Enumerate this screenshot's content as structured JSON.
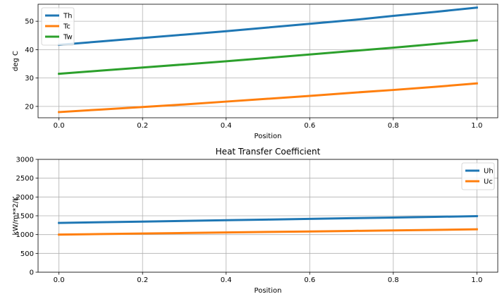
{
  "chart_data": [
    {
      "type": "line",
      "title": "",
      "xlabel": "Position",
      "ylabel": "deg C",
      "xlim": [
        -0.05,
        1.05
      ],
      "ylim": [
        16,
        56
      ],
      "xticks": [
        0.0,
        0.2,
        0.4,
        0.6,
        0.8,
        1.0
      ],
      "xtick_labels": [
        "0.0",
        "0.2",
        "0.4",
        "0.6",
        "0.8",
        "1.0"
      ],
      "yticks": [
        20,
        30,
        40,
        50
      ],
      "ytick_labels": [
        "20",
        "30",
        "40",
        "50"
      ],
      "grid": true,
      "legend": "top-left",
      "x": [
        0.0,
        0.1,
        0.2,
        0.3,
        0.4,
        0.5,
        0.6,
        0.7,
        0.8,
        0.9,
        1.0
      ],
      "series": [
        {
          "name": "Th",
          "color": "#1f77b4",
          "values": [
            41.7,
            42.9,
            44.1,
            45.3,
            46.5,
            47.8,
            49.1,
            50.4,
            51.9,
            53.3,
            54.8
          ]
        },
        {
          "name": "Tc",
          "color": "#ff7f0e",
          "values": [
            18.0,
            18.9,
            19.8,
            20.7,
            21.7,
            22.7,
            23.7,
            24.8,
            25.8,
            26.9,
            28.1
          ]
        },
        {
          "name": "Tw",
          "color": "#2ca02c",
          "values": [
            31.5,
            32.6,
            33.7,
            34.8,
            35.9,
            37.1,
            38.3,
            39.5,
            40.7,
            42.0,
            43.3
          ]
        }
      ]
    },
    {
      "type": "line",
      "title": "Heat Transfer Coefficient",
      "xlabel": "Position",
      "ylabel": "kW/m**2/K",
      "xlim": [
        -0.05,
        1.05
      ],
      "ylim": [
        0,
        3000
      ],
      "xticks": [
        0.0,
        0.2,
        0.4,
        0.6,
        0.8,
        1.0
      ],
      "xtick_labels": [
        "0.0",
        "0.2",
        "0.4",
        "0.6",
        "0.8",
        "1.0"
      ],
      "yticks": [
        0,
        500,
        1000,
        1500,
        2000,
        2500,
        3000
      ],
      "ytick_labels": [
        "0",
        "500",
        "1000",
        "1500",
        "2000",
        "2500",
        "3000"
      ],
      "grid": true,
      "legend": "top-right",
      "x": [
        0.0,
        0.1,
        0.2,
        0.3,
        0.4,
        0.5,
        0.6,
        0.7,
        0.8,
        0.9,
        1.0
      ],
      "series": [
        {
          "name": "Uh",
          "color": "#1f77b4",
          "values": [
            1310,
            1328,
            1346,
            1364,
            1382,
            1400,
            1418,
            1436,
            1454,
            1472,
            1490
          ]
        },
        {
          "name": "Uc",
          "color": "#ff7f0e",
          "values": [
            1000,
            1014,
            1028,
            1042,
            1056,
            1070,
            1084,
            1098,
            1112,
            1126,
            1140
          ]
        }
      ]
    }
  ]
}
